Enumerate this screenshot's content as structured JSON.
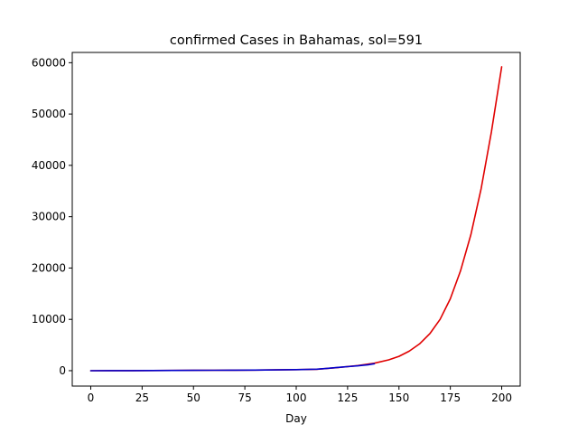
{
  "chart_data": {
    "type": "line",
    "title": "confirmed Cases in Bahamas, sol=591",
    "xlabel": "Day",
    "ylabel": "",
    "xlim": [
      -9,
      209
    ],
    "ylim": [
      -3000,
      62000
    ],
    "x_ticks": [
      0,
      25,
      50,
      75,
      100,
      125,
      150,
      175,
      200
    ],
    "y_ticks": [
      0,
      10000,
      20000,
      30000,
      40000,
      50000,
      60000
    ],
    "grid": false,
    "legend": "none",
    "series": [
      {
        "color": "#e00000",
        "x": [
          0,
          10,
          20,
          30,
          40,
          50,
          60,
          70,
          80,
          90,
          100,
          110,
          120,
          130,
          138,
          145,
          150,
          155,
          160,
          165,
          170,
          175,
          180,
          185,
          190,
          195,
          200
        ],
        "y": [
          0,
          5,
          15,
          30,
          45,
          60,
          75,
          95,
          120,
          150,
          200,
          270,
          600,
          1000,
          1450,
          2100,
          2800,
          3800,
          5200,
          7200,
          10000,
          14000,
          19500,
          26500,
          35500,
          46500,
          59200
        ]
      },
      {
        "color": "#0000cc",
        "x": [
          0,
          10,
          20,
          30,
          40,
          50,
          60,
          70,
          80,
          90,
          100,
          105,
          110,
          115,
          120,
          125,
          130,
          135,
          138
        ],
        "y": [
          0,
          5,
          15,
          30,
          45,
          60,
          75,
          95,
          120,
          150,
          200,
          240,
          300,
          450,
          620,
          780,
          950,
          1150,
          1350
        ]
      }
    ]
  }
}
